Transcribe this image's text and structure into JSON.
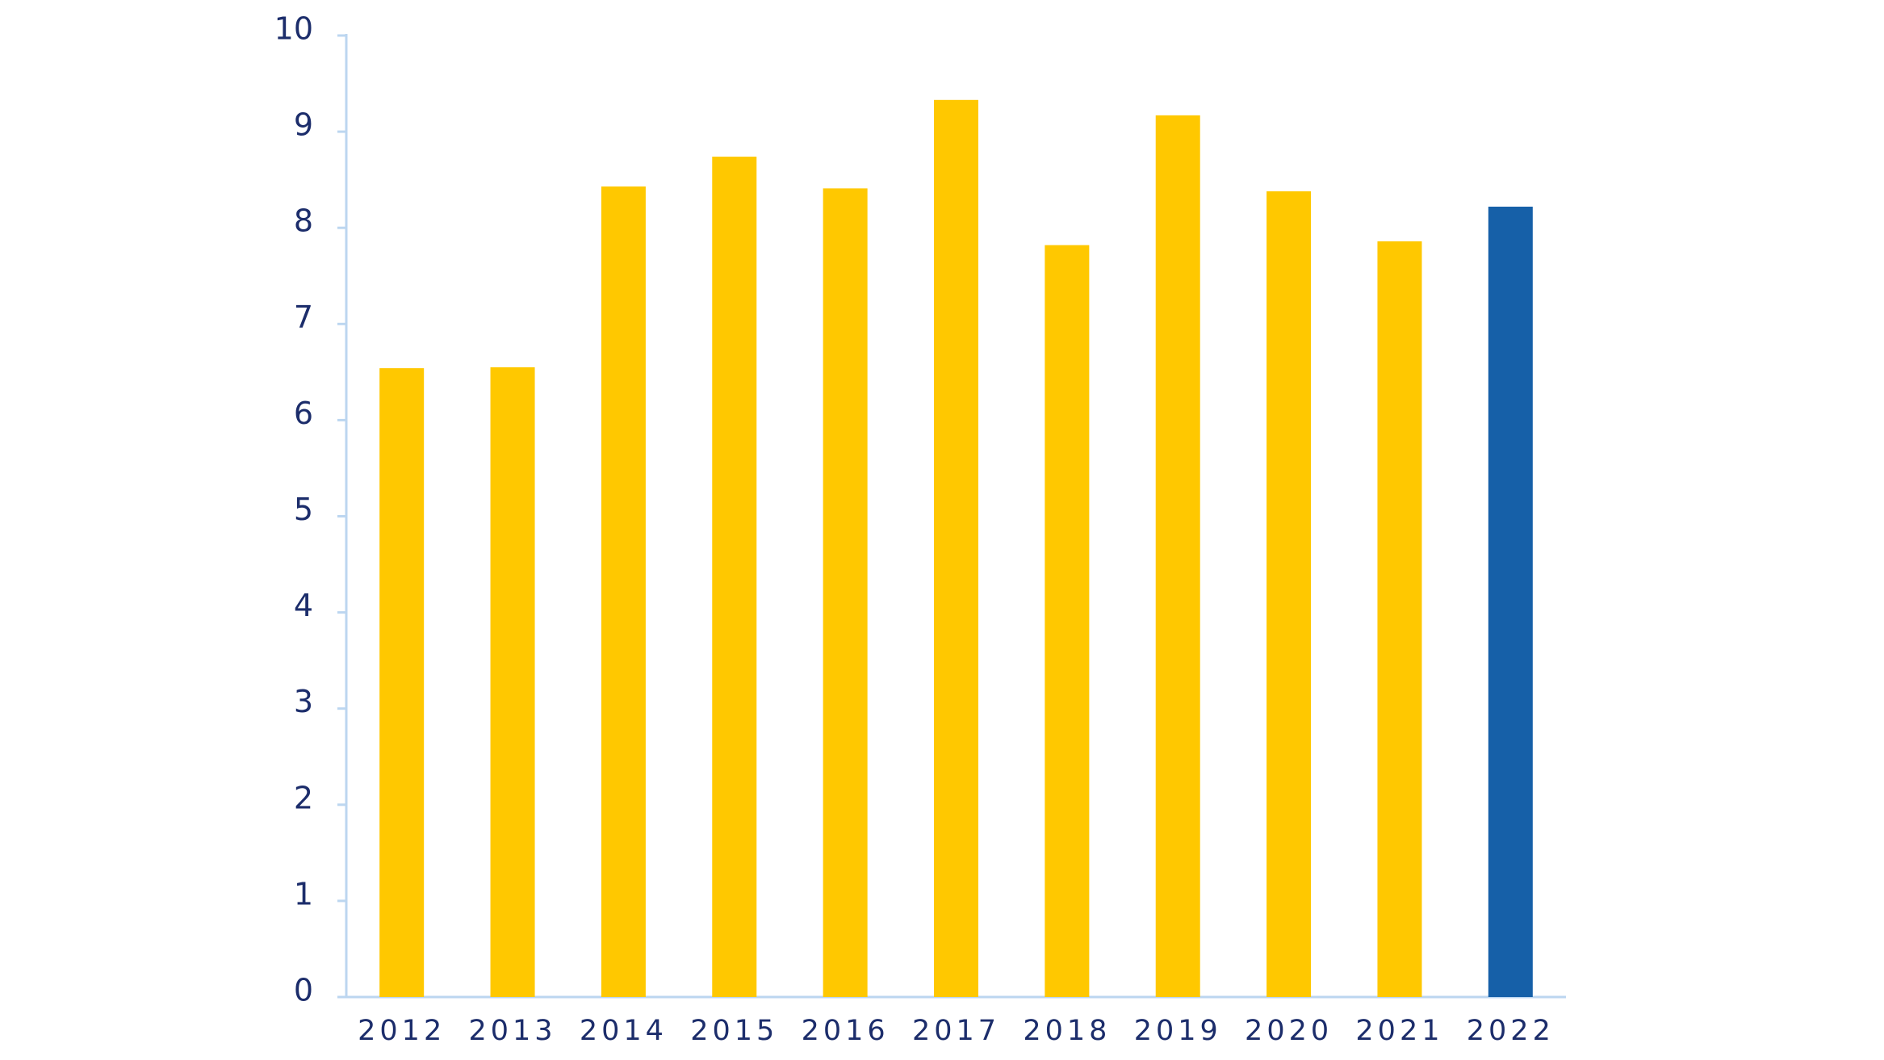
{
  "chart_data": {
    "type": "bar",
    "categories": [
      "2012",
      "2013",
      "2014",
      "2015",
      "2016",
      "2017",
      "2018",
      "2019",
      "2020",
      "2021",
      "2022"
    ],
    "values": [
      6.54,
      6.55,
      8.43,
      8.74,
      8.41,
      9.33,
      7.82,
      9.17,
      8.38,
      7.86,
      8.22
    ],
    "colors": [
      "#ffc800",
      "#ffc800",
      "#ffc800",
      "#ffc800",
      "#ffc800",
      "#ffc800",
      "#ffc800",
      "#ffc800",
      "#ffc800",
      "#ffc800",
      "#1660a8"
    ],
    "ylim": [
      0,
      10
    ],
    "yticks": [
      0,
      1,
      2,
      3,
      4,
      5,
      6,
      7,
      8,
      9,
      10
    ],
    "grid": false
  }
}
